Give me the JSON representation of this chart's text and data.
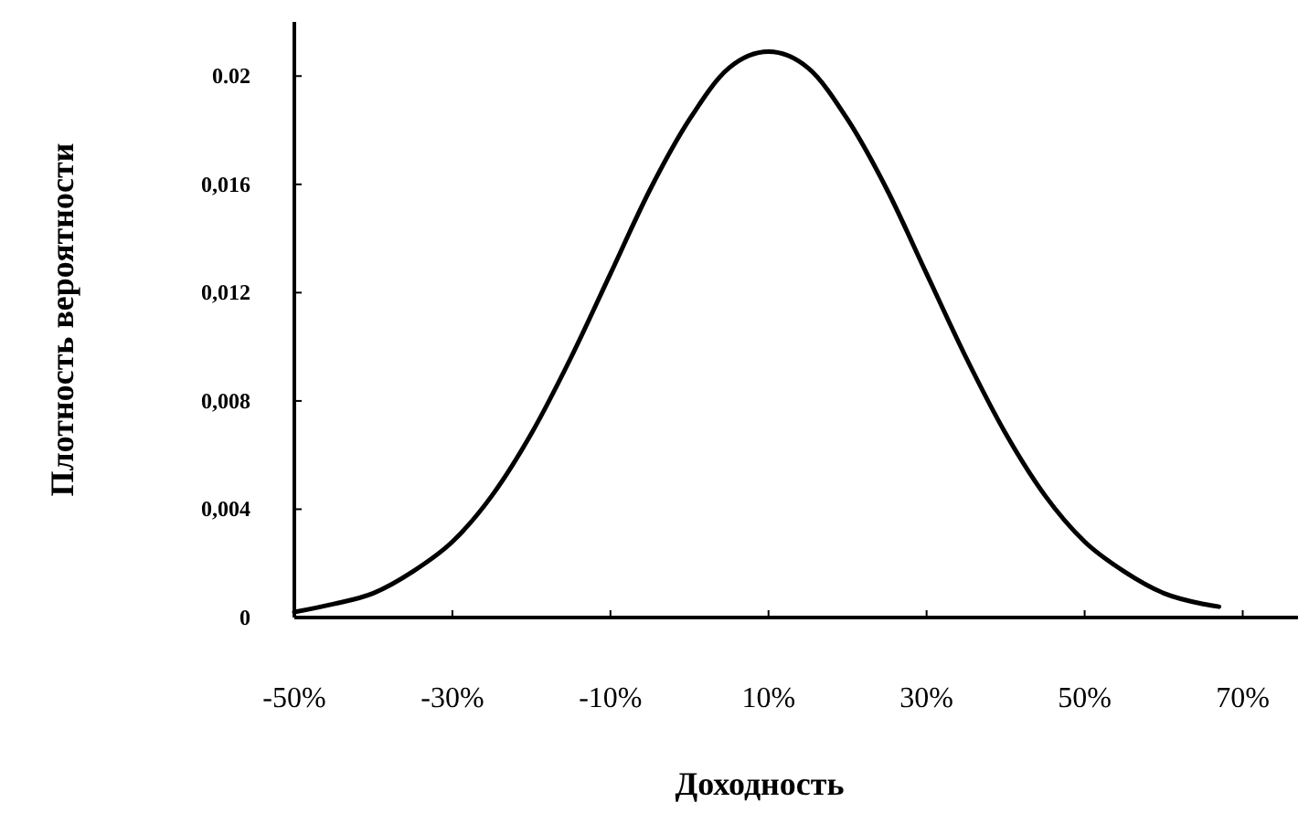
{
  "chart_data": {
    "type": "line",
    "xlabel": "Доходность",
    "ylabel": "Плотность вероятности",
    "x": [
      -50,
      -45,
      -40,
      -35,
      -30,
      -25,
      -20,
      -15,
      -10,
      -5,
      0,
      5,
      10,
      15,
      20,
      25,
      30,
      35,
      40,
      45,
      50,
      55,
      60,
      65,
      67
    ],
    "series": [
      {
        "color": "#000000",
        "values": [
          0.0002,
          0.0005,
          0.0009,
          0.0017,
          0.0028,
          0.0045,
          0.0068,
          0.0096,
          0.0127,
          0.0158,
          0.0184,
          0.0203,
          0.0209,
          0.0203,
          0.0184,
          0.0158,
          0.0127,
          0.0096,
          0.0068,
          0.0045,
          0.0028,
          0.0017,
          0.0009,
          0.0005,
          0.0004
        ]
      }
    ],
    "xlim": [
      -50,
      77
    ],
    "ylim": [
      0,
      0.022
    ],
    "xticks": [
      {
        "value": -50,
        "label": "-50%"
      },
      {
        "value": -30,
        "label": "-30%"
      },
      {
        "value": -10,
        "label": "-10%"
      },
      {
        "value": 10,
        "label": "10%"
      },
      {
        "value": 30,
        "label": "30%"
      },
      {
        "value": 50,
        "label": "50%"
      },
      {
        "value": 70,
        "label": "70%"
      }
    ],
    "yticks": [
      {
        "value": 0,
        "label": "0"
      },
      {
        "value": 0.004,
        "label": "0,004"
      },
      {
        "value": 0.008,
        "label": "0,008"
      },
      {
        "value": 0.012,
        "label": "0,012"
      },
      {
        "value": 0.016,
        "label": "0,016"
      },
      {
        "value": 0.02,
        "label": "0.02"
      }
    ],
    "grid": false,
    "marker": "none",
    "line_style": "solid"
  }
}
